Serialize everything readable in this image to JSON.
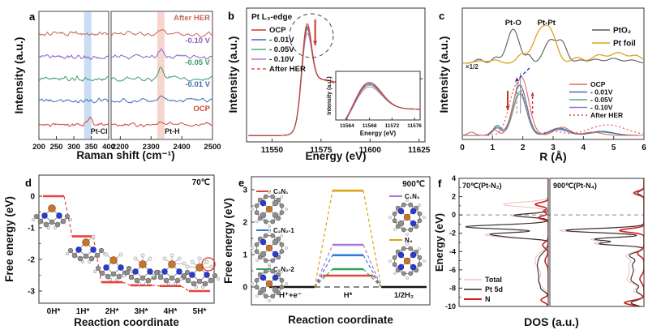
{
  "figure": {
    "background": "#ffffff"
  },
  "atom_colors": {
    "N": "#2a3bd6",
    "C": "#8f8f8f",
    "H": "#f2f2f2",
    "Pt": "#c8742a"
  },
  "chart_data": [
    {
      "id": "a",
      "panel_label": "a",
      "type": "line",
      "xlabel": "Raman shift (cm⁻¹)",
      "ylabel": "Intensity (a.u.)",
      "segments": [
        {
          "xmin": 200,
          "xmax": 400,
          "ticks": [
            200,
            250,
            300,
            350,
            400
          ]
        },
        {
          "xmin": 2170,
          "xmax": 2500,
          "ticks": [
            2200,
            2300,
            2400,
            2500
          ]
        }
      ],
      "bands": [
        {
          "label": "Pt-Cl",
          "x": 340,
          "width": 9,
          "color": "#a9c4ee",
          "segment": 0
        },
        {
          "label": "Pt-H",
          "x": 2332,
          "width": 9,
          "color": "#f4b7ae",
          "segment": 1
        }
      ],
      "noise_amp": 4.2,
      "series": [
        {
          "name": "After HER",
          "color": "#c4675b",
          "baseline": 42,
          "seed": 101,
          "peaks": [
            [
              2332,
              8,
              8
            ]
          ]
        },
        {
          "name": "-0.10 V",
          "color": "#8a5fc4",
          "baseline": 70,
          "seed": 202,
          "peaks": [
            [
              2332,
              10,
              8
            ]
          ]
        },
        {
          "name": "-0.05 V",
          "color": "#3d9c66",
          "baseline": 97,
          "seed": 303,
          "peaks": [
            [
              2332,
              12,
              7
            ]
          ]
        },
        {
          "name": "-0.01 V",
          "color": "#3f6cb5",
          "baseline": 124,
          "seed": 404,
          "peaks": [
            [
              2332,
              6,
              8
            ]
          ]
        },
        {
          "name": "OCP",
          "color": "#d2453b",
          "baseline": 154,
          "seed": 505,
          "peaks": [
            [
              345,
              9,
              7
            ],
            [
              2332,
              4,
              8
            ]
          ]
        }
      ]
    },
    {
      "id": "b",
      "panel_label": "b",
      "type": "line",
      "title": "Pt L₃-edge",
      "xlabel": "Energy (eV)",
      "ylabel": "Intensity (a.u.)",
      "xmin": 11537,
      "xmax": 11628,
      "xticks": [
        11550,
        11575,
        11600,
        11625
      ],
      "white_line_energy": 11568,
      "series": [
        {
          "name": "OCP",
          "color": "#cc3b33",
          "peak_scale": 1.0,
          "dash": false
        },
        {
          "name": "- 0.01V",
          "color": "#3f6cc0",
          "peak_scale": 0.955,
          "dash": false
        },
        {
          "name": "- 0.05V",
          "color": "#52ab7d",
          "peak_scale": 0.91,
          "dash": false
        },
        {
          "name": "- 0.10V",
          "color": "#b07cd6",
          "peak_scale": 0.85,
          "dash": false
        },
        {
          "name": "After HER",
          "color": "#e05548",
          "peak_scale": 0.93,
          "dash": true
        }
      ],
      "arrow_color": "#d03328",
      "inset": {
        "xmin": 11562,
        "xmax": 11577,
        "xticks": [
          11564,
          11568,
          11572,
          11576
        ],
        "xlabel": "Energy (eV)",
        "ylabel": "Intensity (a.u.)"
      }
    },
    {
      "id": "c",
      "panel_label": "c",
      "type": "line",
      "xlabel": "R (Å)",
      "ylabel": "Intensity (a.u.)",
      "xmin": 0,
      "xmax": 6,
      "xticks": [
        0,
        1,
        2,
        3,
        4,
        5,
        6
      ],
      "scale_note": "×1/2",
      "peak_labels": [
        {
          "text": "Pt-O",
          "x": 1.68
        },
        {
          "text": "Pt-Pt",
          "x": 2.78
        }
      ],
      "reference_series": [
        {
          "name": "PtO₂",
          "color": "#5a5a5a",
          "peaks": [
            [
              0.55,
              5,
              0.13
            ],
            [
              1.1,
              7,
              0.12
            ],
            [
              1.68,
              42,
              0.2
            ],
            [
              2.2,
              9,
              0.1
            ],
            [
              2.9,
              28,
              0.2
            ],
            [
              3.3,
              24,
              0.16
            ],
            [
              3.9,
              4,
              0.15
            ],
            [
              4.4,
              5,
              0.18
            ],
            [
              5.0,
              6,
              0.2
            ],
            [
              5.6,
              4,
              0.18
            ]
          ]
        },
        {
          "name": "Pt foil",
          "color": "#d9a41c",
          "peaks": [
            [
              0.6,
              3,
              0.2
            ],
            [
              1.1,
              4,
              0.15
            ],
            [
              1.95,
              10,
              0.15
            ],
            [
              2.58,
              38,
              0.25
            ],
            [
              2.95,
              28,
              0.2
            ],
            [
              3.8,
              7,
              0.18
            ],
            [
              4.5,
              10,
              0.22
            ],
            [
              5.15,
              13,
              0.25
            ],
            [
              5.75,
              9,
              0.2
            ]
          ]
        }
      ],
      "sample_series": [
        {
          "name": "OCP",
          "color": "#e2685c",
          "dash": null,
          "peaks": [
            [
              0.3,
              4,
              0.12
            ],
            [
              1.05,
              7,
              0.12
            ],
            [
              1.95,
              72,
              0.24
            ],
            [
              3.3,
              10,
              0.25
            ],
            [
              4.3,
              4,
              0.3
            ]
          ]
        },
        {
          "name": "- 0.01V",
          "color": "#3f6cc0",
          "dash": null,
          "peaks": [
            [
              1.15,
              12,
              0.13
            ],
            [
              1.9,
              62,
              0.23
            ],
            [
              3.2,
              9,
              0.3
            ],
            [
              4.6,
              5,
              0.4
            ]
          ]
        },
        {
          "name": "- 0.05V",
          "color": "#52ab7d",
          "dash": null,
          "peaks": [
            [
              1.15,
              10,
              0.13
            ],
            [
              1.9,
              54,
              0.22
            ],
            [
              3.2,
              8,
              0.3
            ],
            [
              4.6,
              4,
              0.4
            ]
          ]
        },
        {
          "name": "- 0.10V",
          "color": "#9a76d0",
          "dash": null,
          "peaks": [
            [
              1.15,
              9,
              0.13
            ],
            [
              1.9,
              51,
              0.22
            ],
            [
              3.2,
              7,
              0.3
            ],
            [
              4.6,
              4,
              0.4
            ]
          ]
        },
        {
          "name": "After HER",
          "color": "#e04438",
          "dash": "2,3",
          "peaks": [
            [
              1.82,
              64,
              0.26
            ],
            [
              3.0,
              5,
              0.3
            ],
            [
              4.8,
              13,
              0.6
            ]
          ]
        }
      ],
      "vlines": [
        {
          "x": 1.92,
          "dash": false
        },
        {
          "x": 1.8,
          "dash": true
        }
      ]
    },
    {
      "id": "d",
      "panel_label": "d",
      "type": "step-diagram",
      "temperature": "70℃",
      "xlabel": "Reaction coordinate",
      "ylabel": "Free energy (eV)",
      "yticks": [
        0,
        -1,
        -2,
        -3
      ],
      "level_color": "#e8423a",
      "steps": [
        {
          "label": "0H*",
          "energy": 0.0,
          "h_count": 0
        },
        {
          "label": "1H*",
          "energy": -1.27,
          "h_count": 1
        },
        {
          "label": "2H*",
          "energy": -2.72,
          "h_count": 2
        },
        {
          "label": "3H*",
          "energy": -2.82,
          "h_count": 3
        },
        {
          "label": "4H*",
          "energy": -2.84,
          "h_count": 4
        },
        {
          "label": "5H*",
          "energy": -3.0,
          "h_count": 5,
          "circled": true
        }
      ]
    },
    {
      "id": "e",
      "panel_label": "e",
      "type": "step-diagram",
      "temperature": "900℃",
      "xlabel": "Reaction coordinate",
      "ylabel": "Free energy (eV)",
      "yticks": [
        0,
        1,
        2,
        3
      ],
      "x_states": [
        "H⁺+e⁻",
        "H*",
        "1/2H₂"
      ],
      "endpoint_energy": 0.0,
      "series": [
        {
          "name": "C₃N₁",
          "color": "#dd4638",
          "barrier": 0.35,
          "blue_idx": [
            0
          ]
        },
        {
          "name": "C₂N₂-1",
          "color": "#2e7cd6",
          "barrier": 0.98,
          "blue_idx": [
            0,
            2
          ]
        },
        {
          "name": "C₂N₂-2",
          "color": "#2fa05e",
          "barrier": 0.55,
          "blue_idx": [
            0,
            1
          ]
        },
        {
          "name": "C₁N₃",
          "color": "#a878d8",
          "barrier": 1.3,
          "blue_idx": [
            0,
            1,
            2
          ]
        },
        {
          "name": "N₄",
          "color": "#d9a511",
          "barrier": 2.97,
          "blue_idx": [
            0,
            1,
            2,
            3
          ]
        }
      ],
      "legend_left": [
        "C₃N₁",
        "C₂N₂-1",
        "C₂N₂-2"
      ],
      "legend_right": [
        "C₁N₃",
        "N₄"
      ]
    },
    {
      "id": "f",
      "panel_label": "f",
      "type": "dos",
      "xlabel": "DOS (a.u.)",
      "ylabel": "Energy (eV)",
      "yticks": [
        4,
        2,
        0,
        -2,
        -4,
        -6,
        -8,
        -10
      ],
      "fermi": 0,
      "legend": [
        "Total",
        "Pt 5d",
        "N"
      ],
      "subpanels": [
        {
          "title": "70℃(Pt-N₂)",
          "series": [
            {
              "name": "Total",
              "color": "#f0b4b4",
              "width": 0.9,
              "peaks": [
                [
                  1.15,
                  55,
                  0.25
                ],
                [
                  -0.05,
                  46,
                  0.2
                ],
                [
                  -1.3,
                  100,
                  0.24
                ],
                [
                  -2.1,
                  70,
                  0.2
                ],
                [
                  -2.45,
                  40,
                  0.18
                ],
                [
                  -4.5,
                  10,
                  0.6
                ],
                [
                  -5.5,
                  12,
                  0.7
                ],
                [
                  -7.3,
                  12,
                  0.6
                ]
              ]
            },
            {
              "name": "Pt 5d",
              "color": "#2a2a2a",
              "width": 1.1,
              "peaks": [
                [
                  -0.05,
                  42,
                  0.18
                ],
                [
                  -1.3,
                  102,
                  0.22
                ],
                [
                  -2.1,
                  68,
                  0.18
                ],
                [
                  -2.45,
                  36,
                  0.16
                ],
                [
                  -4.5,
                  8,
                  0.5
                ],
                [
                  -5.4,
                  10,
                  0.5
                ],
                [
                  -6.3,
                  9,
                  0.5
                ],
                [
                  -7.3,
                  10,
                  0.5
                ],
                [
                  -8.1,
                  6,
                  0.3
                ]
              ]
            },
            {
              "name": "N",
              "color": "#cc2222",
              "width": 1.6,
              "peaks": [
                [
                  1.15,
                  16,
                  0.2
                ],
                [
                  0.4,
                  6,
                  0.15
                ],
                [
                  -0.3,
                  12,
                  0.18
                ],
                [
                  -3.3,
                  7,
                  0.3
                ],
                [
                  -5.0,
                  4,
                  0.4
                ],
                [
                  -9.3,
                  9,
                  0.25
                ]
              ]
            }
          ]
        },
        {
          "title": "900℃(Pt-N₄)",
          "series": [
            {
              "name": "Total",
              "color": "#f0b4b4",
              "width": 0.9,
              "peaks": [
                [
                  2.4,
                  14,
                  0.25
                ],
                [
                  -1.7,
                  104,
                  0.24
                ],
                [
                  -2.65,
                  64,
                  0.2
                ],
                [
                  -3.15,
                  58,
                  0.18
                ],
                [
                  -4.4,
                  20,
                  0.35
                ],
                [
                  -5.4,
                  16,
                  0.5
                ],
                [
                  -6.4,
                  14,
                  0.5
                ],
                [
                  -7.2,
                  16,
                  0.4
                ],
                [
                  -8.3,
                  12,
                  0.3
                ],
                [
                  -9.6,
                  22,
                  0.25
                ]
              ]
            },
            {
              "name": "Pt 5d",
              "color": "#2a2a2a",
              "width": 1.1,
              "peaks": [
                [
                  2.4,
                  8,
                  0.2
                ],
                [
                  -1.7,
                  96,
                  0.22
                ],
                [
                  -2.65,
                  60,
                  0.18
                ],
                [
                  -3.15,
                  54,
                  0.17
                ],
                [
                  -4.4,
                  17,
                  0.3
                ],
                [
                  -5.4,
                  13,
                  0.45
                ],
                [
                  -6.4,
                  11,
                  0.45
                ],
                [
                  -7.2,
                  13,
                  0.4
                ],
                [
                  -8.3,
                  9,
                  0.3
                ],
                [
                  -9.6,
                  16,
                  0.25
                ]
              ]
            },
            {
              "name": "N",
              "color": "#cc2222",
              "width": 1.6,
              "peaks": [
                [
                  2.4,
                  12,
                  0.2
                ],
                [
                  -1.7,
                  30,
                  0.2
                ],
                [
                  -4.2,
                  8,
                  0.3
                ],
                [
                  -7.0,
                  5,
                  0.4
                ],
                [
                  -9.6,
                  24,
                  0.25
                ]
              ]
            }
          ]
        }
      ]
    }
  ]
}
